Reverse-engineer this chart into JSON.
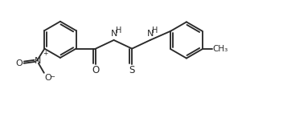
{
  "bg_color": "#ffffff",
  "line_color": "#2a2a2a",
  "line_width": 1.35,
  "font_size": 7.0,
  "fig_width": 3.57,
  "fig_height": 1.52,
  "dpi": 100,
  "xlim": [
    -0.3,
    9.8
  ],
  "ylim": [
    -0.5,
    4.3
  ]
}
